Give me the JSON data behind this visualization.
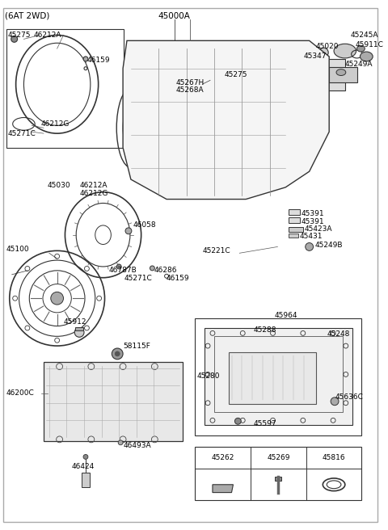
{
  "title": "(6AT 2WD)",
  "main_part": "45000A",
  "bg_color": "#ffffff",
  "border_color": "#000000",
  "text_color": "#000000",
  "fig_width": 4.8,
  "fig_height": 6.56,
  "dpi": 100,
  "labels": {
    "top_left_box": [
      "45275",
      "46212A",
      "46159",
      "46212G",
      "45271C"
    ],
    "middle_left": [
      "45030",
      "46212A",
      "46212G",
      "45100",
      "46058",
      "46787B",
      "45271C",
      "46286",
      "46159"
    ],
    "top_right": [
      "45245A",
      "45911C",
      "45020",
      "45275",
      "45267H",
      "45268A",
      "45249A",
      "45347"
    ],
    "right_middle": [
      "45391",
      "45391",
      "45423A",
      "45431",
      "45249B",
      "45221C",
      "45964"
    ],
    "bottom_right_box": [
      "45280",
      "45288",
      "45248",
      "45597",
      "45636C"
    ],
    "bottom_left": [
      "45912",
      "58115F",
      "46200C",
      "46493A",
      "46424"
    ],
    "bottom_table": [
      "45262",
      "45269",
      "45816"
    ]
  }
}
